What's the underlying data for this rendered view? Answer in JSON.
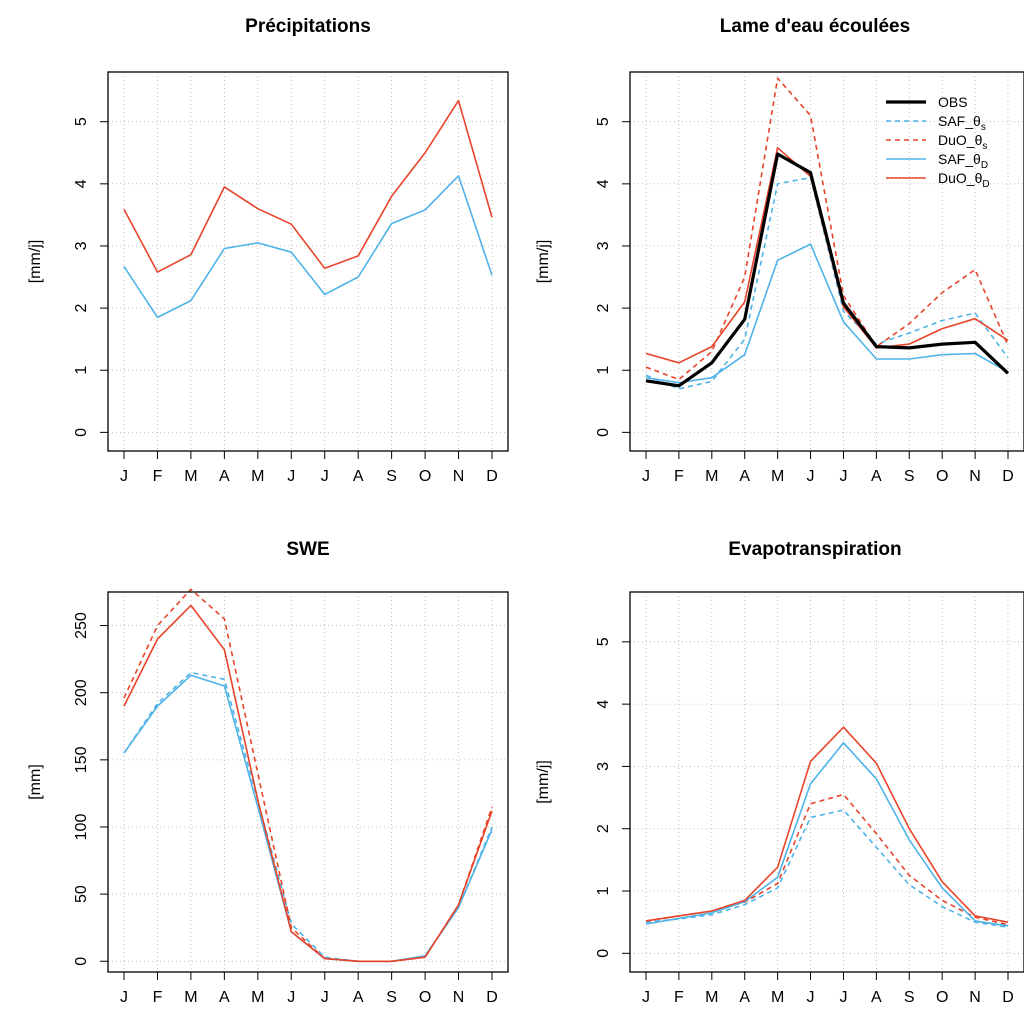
{
  "colors": {
    "obs": "#000000",
    "saf": "#4fb3e8",
    "duo": "#e8442a",
    "grid": "#b0b0b0"
  },
  "chart_data": [
    {
      "type": "line",
      "title": "Précipitations",
      "ylabel": "[mm/j]",
      "categories": [
        "J",
        "F",
        "M",
        "A",
        "M",
        "J",
        "J",
        "A",
        "S",
        "O",
        "N",
        "D"
      ],
      "ylim": [
        -0.3,
        5.8
      ],
      "yticks": [
        0,
        1,
        2,
        3,
        4,
        5
      ],
      "yticks_rotated": true,
      "grid": true,
      "legend": null,
      "series": [
        {
          "key": "saf",
          "style": "solid",
          "values": [
            2.67,
            1.85,
            2.12,
            2.96,
            3.05,
            2.9,
            2.22,
            2.5,
            3.36,
            3.58,
            4.13,
            2.53
          ]
        },
        {
          "key": "duo",
          "style": "solid",
          "values": [
            3.59,
            2.58,
            2.86,
            3.95,
            3.6,
            3.35,
            2.64,
            2.84,
            3.8,
            4.5,
            5.34,
            3.46
          ]
        }
      ]
    },
    {
      "type": "line",
      "title": "Lame d'eau écoulées",
      "ylabel": "[mm/j]",
      "categories": [
        "J",
        "F",
        "M",
        "A",
        "M",
        "J",
        "J",
        "A",
        "S",
        "O",
        "N",
        "D"
      ],
      "ylim": [
        -0.3,
        5.8
      ],
      "yticks": [
        0,
        1,
        2,
        3,
        4,
        5
      ],
      "yticks_rotated": true,
      "grid": true,
      "legend": {
        "position": "top-right"
      },
      "series": [
        {
          "key": "saf_s",
          "color_key": "saf",
          "style": "dashed",
          "values": [
            0.92,
            0.7,
            0.82,
            1.5,
            4.0,
            4.1,
            1.95,
            1.42,
            1.6,
            1.8,
            1.92,
            1.2
          ]
        },
        {
          "key": "duo_s",
          "color_key": "duo",
          "style": "dashed",
          "values": [
            1.05,
            0.85,
            1.3,
            2.5,
            5.7,
            5.1,
            2.2,
            1.38,
            1.75,
            2.25,
            2.62,
            1.4
          ]
        },
        {
          "key": "saf_d",
          "color_key": "saf",
          "style": "solid",
          "values": [
            0.88,
            0.8,
            0.88,
            1.25,
            2.77,
            3.03,
            1.78,
            1.18,
            1.18,
            1.25,
            1.27,
            0.97
          ]
        },
        {
          "key": "duo_d",
          "color_key": "duo",
          "style": "solid",
          "values": [
            1.27,
            1.12,
            1.38,
            2.1,
            4.58,
            4.12,
            2.02,
            1.36,
            1.42,
            1.67,
            1.83,
            1.48
          ]
        },
        {
          "key": "obs",
          "color_key": "obs",
          "style": "thick",
          "values": [
            0.83,
            0.75,
            1.12,
            1.82,
            4.48,
            4.18,
            2.08,
            1.38,
            1.36,
            1.42,
            1.45,
            0.95
          ]
        }
      ],
      "legend_entries": [
        {
          "color_key": "obs",
          "style": "thick",
          "label": "OBS",
          "sub": ""
        },
        {
          "color_key": "saf",
          "style": "dashed",
          "label": "SAF_θ",
          "sub": "s"
        },
        {
          "color_key": "duo",
          "style": "dashed",
          "label": "DuO_θ",
          "sub": "s"
        },
        {
          "color_key": "saf",
          "style": "solid",
          "label": "SAF_θ",
          "sub": "D"
        },
        {
          "color_key": "duo",
          "style": "solid",
          "label": "DuO_θ",
          "sub": "D"
        }
      ]
    },
    {
      "type": "line",
      "title": "SWE",
      "ylabel": "[mm]",
      "categories": [
        "J",
        "F",
        "M",
        "A",
        "M",
        "J",
        "J",
        "A",
        "S",
        "O",
        "N",
        "D"
      ],
      "ylim": [
        -8,
        275
      ],
      "yticks": [
        0,
        50,
        100,
        150,
        200,
        250
      ],
      "yticks_rotated": true,
      "grid": true,
      "legend": null,
      "series": [
        {
          "key": "saf_s",
          "color_key": "saf",
          "style": "dashed",
          "values": [
            155,
            192,
            215,
            210,
            120,
            28,
            3,
            0,
            0,
            4,
            40,
            100
          ]
        },
        {
          "key": "duo_s",
          "color_key": "duo",
          "style": "dashed",
          "values": [
            196,
            250,
            277,
            255,
            140,
            25,
            2,
            0,
            0,
            3,
            42,
            115
          ]
        },
        {
          "key": "saf_d",
          "color_key": "saf",
          "style": "solid",
          "values": [
            155,
            190,
            213,
            205,
            115,
            22,
            2,
            0,
            0,
            4,
            40,
            98
          ]
        },
        {
          "key": "duo_d",
          "color_key": "duo",
          "style": "solid",
          "values": [
            190,
            240,
            265,
            232,
            120,
            22,
            2,
            0,
            0,
            3,
            42,
            112
          ]
        }
      ]
    },
    {
      "type": "line",
      "title": "Evapotranspiration",
      "ylabel": "[mm/j]",
      "categories": [
        "J",
        "F",
        "M",
        "A",
        "M",
        "J",
        "J",
        "A",
        "S",
        "O",
        "N",
        "D"
      ],
      "ylim": [
        -0.3,
        5.8
      ],
      "yticks": [
        0,
        1,
        2,
        3,
        4,
        5
      ],
      "yticks_rotated": true,
      "grid": true,
      "legend": null,
      "series": [
        {
          "key": "saf_s",
          "color_key": "saf",
          "style": "dashed",
          "values": [
            0.5,
            0.55,
            0.62,
            0.78,
            1.05,
            2.18,
            2.3,
            1.7,
            1.1,
            0.75,
            0.5,
            0.42
          ]
        },
        {
          "key": "duo_s",
          "color_key": "duo",
          "style": "dashed",
          "values": [
            0.52,
            0.6,
            0.68,
            0.82,
            1.12,
            2.4,
            2.55,
            1.92,
            1.25,
            0.85,
            0.58,
            0.46
          ]
        },
        {
          "key": "saf_d",
          "color_key": "saf",
          "style": "solid",
          "values": [
            0.47,
            0.56,
            0.65,
            0.83,
            1.22,
            2.72,
            3.38,
            2.8,
            1.82,
            1.05,
            0.52,
            0.44
          ]
        },
        {
          "key": "duo_d",
          "color_key": "duo",
          "style": "solid",
          "values": [
            0.52,
            0.6,
            0.68,
            0.85,
            1.38,
            3.08,
            3.63,
            3.05,
            2.0,
            1.15,
            0.6,
            0.5
          ]
        }
      ]
    }
  ]
}
